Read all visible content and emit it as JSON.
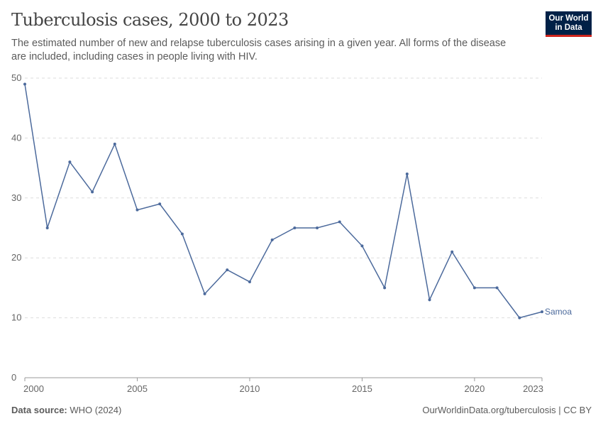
{
  "header": {
    "title": "Tuberculosis cases, 2000 to 2023",
    "subtitle": "The estimated number of new and relapse tuberculosis cases arising in a given year. All forms of the disease are included, including cases in people living with HIV.",
    "logo_text": "Our World in Data"
  },
  "footer": {
    "source_label": "Data source:",
    "source": "WHO (2024)",
    "url": "OurWorldinData.org/tuberculosis | CC BY"
  },
  "chart_data": {
    "type": "line",
    "title": "Tuberculosis cases, 2000 to 2023",
    "xlabel": "",
    "ylabel": "",
    "xlim": [
      2000,
      2023
    ],
    "ylim": [
      0,
      50
    ],
    "x_ticks": [
      2000,
      2005,
      2010,
      2015,
      2020,
      2023
    ],
    "y_ticks": [
      0,
      10,
      20,
      30,
      40,
      50
    ],
    "grid": "horizontal-dashed",
    "x": [
      2000,
      2001,
      2002,
      2003,
      2004,
      2005,
      2006,
      2007,
      2008,
      2009,
      2010,
      2011,
      2012,
      2013,
      2014,
      2015,
      2016,
      2017,
      2018,
      2019,
      2020,
      2021,
      2022,
      2023
    ],
    "series": [
      {
        "name": "Samoa",
        "color": "#4c6a9c",
        "values": [
          49,
          25,
          36,
          31,
          39,
          28,
          29,
          24,
          14,
          18,
          16,
          23,
          25,
          25,
          26,
          22,
          15,
          34,
          13,
          21,
          15,
          15,
          10,
          11
        ]
      }
    ]
  }
}
